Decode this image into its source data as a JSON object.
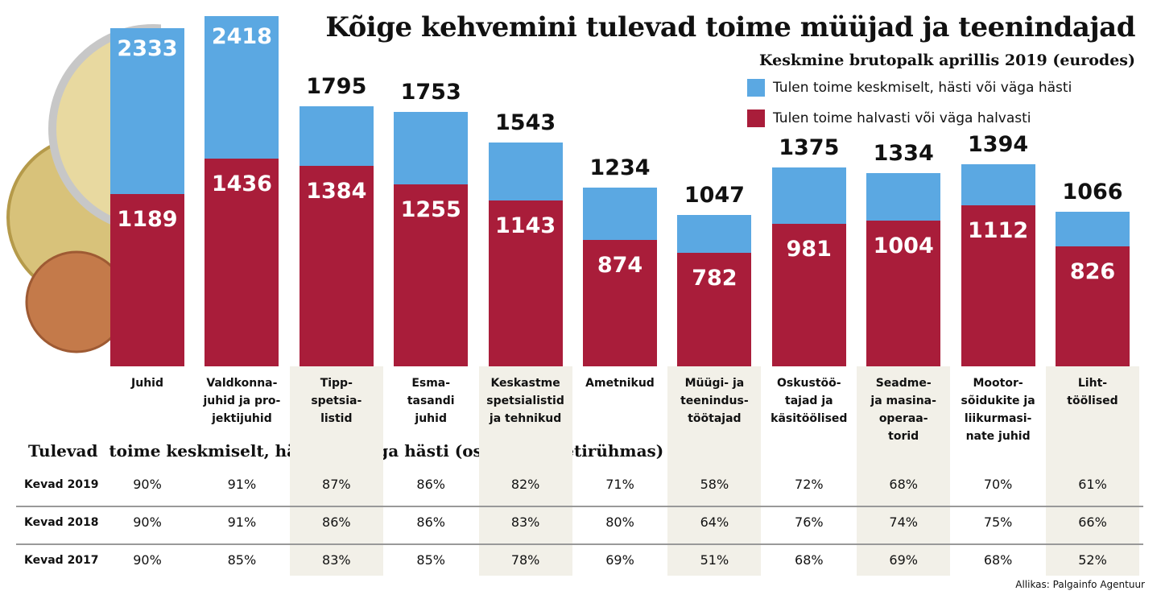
{
  "chart_data": {
    "type": "bar",
    "title": "Kõige kehvemini tulevad toime müüjad ja teenindajad",
    "subtitle": "Keskmine brutopalk aprillis 2019 (eurodes)",
    "categories": [
      "Juhid",
      "Valdkonna-\njuhid ja pro-\njektijuhid",
      "Tipp-\nspetsia-\nlistid",
      "Esma-\ntasandi\njuhid",
      "Keskastme\nspetsialistid\nja tehnikud",
      "Ametnikud",
      "Müügi- ja\nteenindus-\ntöötajad",
      "Oskustöö-\ntajad ja\nkäsitöölised",
      "Seadme-\nja masina-\noperaa-\ntorid",
      "Mootor-\nsõidukite ja\nliikurmasi-\nnate juhid",
      "Liht-\ntöölised"
    ],
    "series": [
      {
        "name": "Tulen toime keskmiselt, hästi või väga hästi",
        "color": "#5ba8e2",
        "values": [
          2333,
          2418,
          1795,
          1753,
          1543,
          1234,
          1047,
          1375,
          1334,
          1394,
          1066
        ]
      },
      {
        "name": "Tulen toime halvasti või väga halvasti",
        "color": "#a91d3a",
        "values": [
          1189,
          1436,
          1384,
          1255,
          1143,
          874,
          782,
          981,
          1004,
          1112,
          826
        ]
      }
    ]
  },
  "table": {
    "title": "Tulevad  toime keskmiselt, hästi või väga hästi (osakaal ametirühmas)",
    "rows": [
      {
        "label": "Kevad 2019",
        "cells": [
          "90%",
          "91%",
          "87%",
          "86%",
          "82%",
          "71%",
          "58%",
          "72%",
          "68%",
          "70%",
          "61%"
        ]
      },
      {
        "label": "Kevad 2018",
        "cells": [
          "90%",
          "91%",
          "86%",
          "86%",
          "83%",
          "80%",
          "64%",
          "76%",
          "74%",
          "75%",
          "66%"
        ]
      },
      {
        "label": "Kevad 2017",
        "cells": [
          "90%",
          "85%",
          "83%",
          "85%",
          "78%",
          "69%",
          "51%",
          "68%",
          "69%",
          "68%",
          "52%"
        ]
      }
    ]
  },
  "source": "Allikas: Palgainfo Agentuur"
}
